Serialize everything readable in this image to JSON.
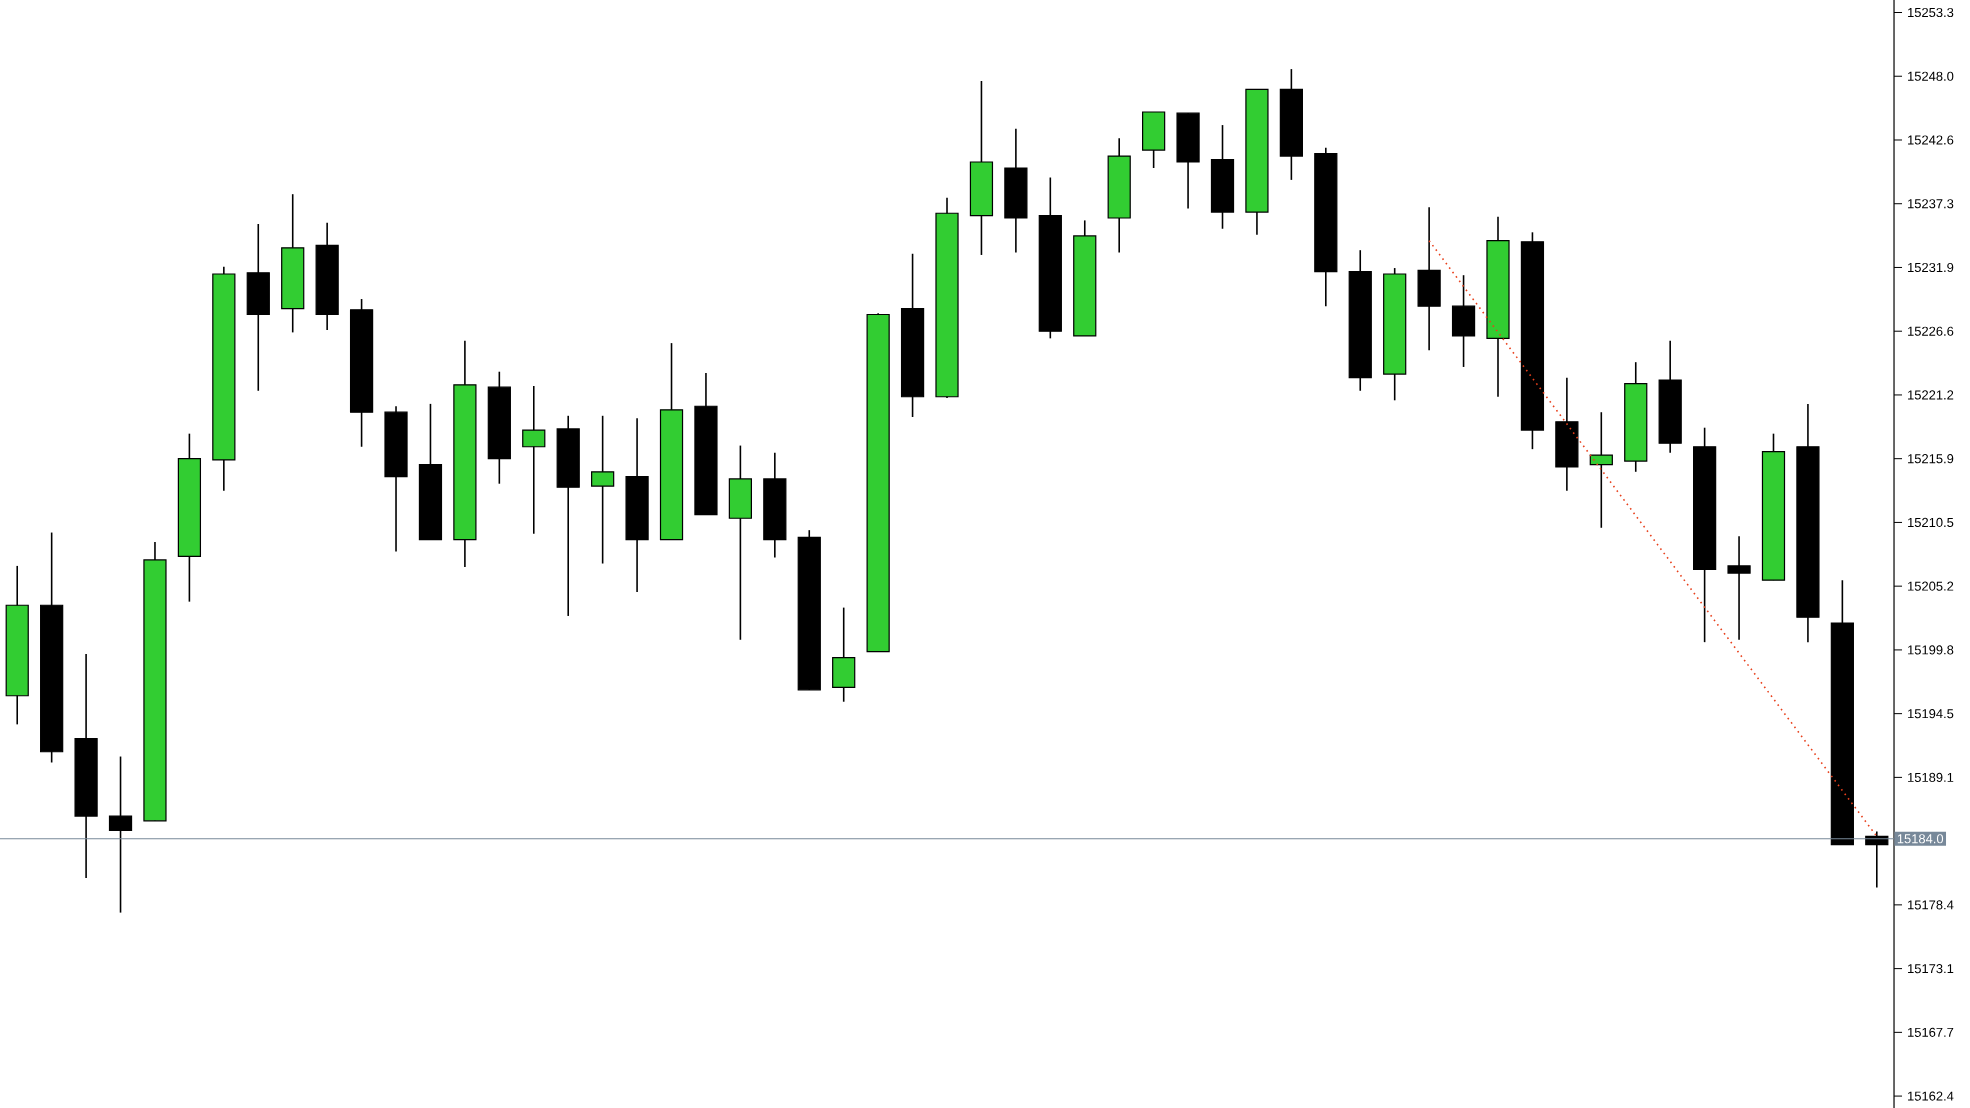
{
  "chart_data": {
    "type": "candlestick",
    "categories": [
      null,
      null,
      null,
      null,
      null,
      null,
      null,
      null,
      null,
      null,
      null,
      null,
      null,
      null,
      null,
      null,
      null,
      null,
      null,
      null,
      null,
      null,
      null,
      null,
      null,
      null,
      null,
      null,
      null,
      null,
      null,
      null,
      null,
      null,
      null,
      null,
      null,
      null,
      null,
      null,
      null,
      null,
      null,
      null,
      null,
      null,
      null,
      null,
      null,
      null,
      null,
      null,
      null,
      null,
      null
    ],
    "ylim": [
      15161.4,
      15254.4
    ],
    "yticks": [
      {
        "value": 15162.4,
        "label": "15162.4"
      },
      {
        "value": 15167.75,
        "label": "15167.7"
      },
      {
        "value": 15173.1,
        "label": "15173.1"
      },
      {
        "value": 15178.45,
        "label": "15178.4"
      },
      {
        "value": 15189.15,
        "label": "15189.1"
      },
      {
        "value": 15194.5,
        "label": "15194.5"
      },
      {
        "value": 15199.85,
        "label": "15199.8"
      },
      {
        "value": 15205.2,
        "label": "15205.2"
      },
      {
        "value": 15210.55,
        "label": "15210.5"
      },
      {
        "value": 15215.9,
        "label": "15215.9"
      },
      {
        "value": 15221.25,
        "label": "15221.2"
      },
      {
        "value": 15226.6,
        "label": "15226.6"
      },
      {
        "value": 15231.95,
        "label": "15231.9"
      },
      {
        "value": 15237.3,
        "label": "15237.3"
      },
      {
        "value": 15242.65,
        "label": "15242.6"
      },
      {
        "value": 15248.0,
        "label": "15248.0"
      },
      {
        "value": 15253.35,
        "label": "15253.3"
      }
    ],
    "tick_labels": "y",
    "ref_lines": [
      {
        "axis": "y",
        "value": 15184.0,
        "label": "15184.0",
        "color": "#778899"
      }
    ],
    "ohlc": [
      [
        15196.0,
        15206.9,
        15193.6,
        15203.6
      ],
      [
        15203.6,
        15209.7,
        15190.4,
        15191.3
      ],
      [
        15192.4,
        15199.5,
        15180.7,
        15185.9
      ],
      [
        15185.9,
        15190.9,
        15177.8,
        15184.7
      ],
      [
        15185.5,
        15208.9,
        15185.5,
        15207.4
      ],
      [
        15207.7,
        15218.0,
        15203.9,
        15215.9
      ],
      [
        15215.8,
        15232.0,
        15213.2,
        15231.4
      ],
      [
        15231.5,
        15235.6,
        15221.6,
        15228.0
      ],
      [
        15228.5,
        15238.1,
        15226.5,
        15233.6
      ],
      [
        15233.8,
        15235.7,
        15226.7,
        15228.0
      ],
      [
        15228.4,
        15229.3,
        15216.9,
        15219.8
      ],
      [
        15219.8,
        15220.3,
        15208.1,
        15214.4
      ],
      [
        15215.4,
        15220.5,
        15209.1,
        15209.1
      ],
      [
        15209.1,
        15225.8,
        15206.8,
        15222.1
      ],
      [
        15221.9,
        15223.2,
        15213.8,
        15215.9
      ],
      [
        15216.9,
        15222.0,
        15209.6,
        15218.3
      ],
      [
        15218.4,
        15219.5,
        15202.7,
        15213.5
      ],
      [
        15213.6,
        15219.5,
        15207.1,
        15214.8
      ],
      [
        15214.4,
        15219.3,
        15204.7,
        15209.1
      ],
      [
        15209.1,
        15225.6,
        15209.1,
        15220.0
      ],
      [
        15220.3,
        15223.1,
        15211.2,
        15211.2
      ],
      [
        15210.9,
        15217.0,
        15200.7,
        15214.2
      ],
      [
        15214.2,
        15216.4,
        15207.6,
        15209.1
      ],
      [
        15209.3,
        15209.9,
        15196.5,
        15196.5
      ],
      [
        15196.7,
        15203.4,
        15195.5,
        15199.2
      ],
      [
        15199.7,
        15228.1,
        15199.7,
        15228.0
      ],
      [
        15228.5,
        15233.1,
        15219.4,
        15221.1
      ],
      [
        15221.1,
        15237.8,
        15221.0,
        15236.5
      ],
      [
        15236.3,
        15247.6,
        15233.0,
        15240.8
      ],
      [
        15240.3,
        15243.6,
        15233.2,
        15236.1
      ],
      [
        15236.3,
        15239.5,
        15226.0,
        15226.6
      ],
      [
        15226.2,
        15235.9,
        15226.2,
        15234.6
      ],
      [
        15236.1,
        15242.8,
        15233.2,
        15241.3
      ],
      [
        15241.8,
        15245.0,
        15240.3,
        15245.0
      ],
      [
        15244.9,
        15244.9,
        15236.9,
        15240.8
      ],
      [
        15241.0,
        15243.9,
        15235.2,
        15236.6
      ],
      [
        15236.6,
        15246.9,
        15234.7,
        15246.9
      ],
      [
        15246.9,
        15248.6,
        15239.3,
        15241.3
      ],
      [
        15241.5,
        15242.0,
        15228.7,
        15231.6
      ],
      [
        15231.6,
        15233.4,
        15221.6,
        15222.7
      ],
      [
        15223.0,
        15231.9,
        15220.8,
        15231.4
      ],
      [
        15231.7,
        15237.0,
        15225.0,
        15228.7
      ],
      [
        15228.7,
        15231.3,
        15223.6,
        15226.2
      ],
      [
        15226.0,
        15236.2,
        15221.1,
        15234.2
      ],
      [
        15234.1,
        15234.9,
        15216.7,
        15218.3
      ],
      [
        15219.0,
        15222.7,
        15213.2,
        15215.2
      ],
      [
        15215.4,
        15219.8,
        15210.1,
        15216.2
      ],
      [
        15215.7,
        15224.0,
        15214.8,
        15222.2
      ],
      [
        15222.5,
        15225.8,
        15216.4,
        15217.2
      ],
      [
        15216.9,
        15218.5,
        15200.5,
        15206.6
      ],
      [
        15206.9,
        15209.4,
        15200.7,
        15206.3
      ],
      [
        15205.7,
        15218.0,
        15205.7,
        15216.5
      ],
      [
        15216.9,
        15220.5,
        15200.5,
        15202.6
      ],
      [
        15202.1,
        15205.7,
        15183.5,
        15183.5
      ],
      [
        15184.2,
        15184.6,
        15179.9,
        15183.5
      ]
    ],
    "colors": [
      "#32cd32",
      "#000000",
      "#000000",
      "#000000",
      "#32cd32",
      "#32cd32",
      "#32cd32",
      "#000000",
      "#32cd32",
      "#000000",
      "#000000",
      "#000000",
      "#000000",
      "#32cd32",
      "#000000",
      "#32cd32",
      "#000000",
      "#32cd32",
      "#000000",
      "#32cd32",
      "#000000",
      "#32cd32",
      "#000000",
      "#000000",
      "#32cd32",
      "#32cd32",
      "#000000",
      "#32cd32",
      "#32cd32",
      "#000000",
      "#000000",
      "#32cd32",
      "#32cd32",
      "#32cd32",
      "#000000",
      "#000000",
      "#32cd32",
      "#000000",
      "#000000",
      "#000000",
      "#32cd32",
      "#000000",
      "#000000",
      "#32cd32",
      "#000000",
      "#000000",
      "#32cd32",
      "#32cd32",
      "#000000",
      "#000000",
      "#000000",
      "#32cd32",
      "#000000",
      "#000000",
      "#000000"
    ],
    "series": [
      {
        "type": "line",
        "values": [
          null,
          null,
          null,
          null,
          null,
          null,
          null,
          null,
          null,
          null,
          null,
          null,
          null,
          null,
          null,
          null,
          null,
          null,
          null,
          null,
          null,
          null,
          null,
          null,
          null,
          null,
          null,
          null,
          null,
          null,
          null,
          null,
          null,
          null,
          null,
          null,
          null,
          null,
          null,
          null,
          null,
          15234.2,
          null,
          null,
          null,
          null,
          null,
          null,
          null,
          null,
          null,
          null,
          null,
          null,
          15184.2
        ],
        "color": "#e8401c",
        "line_style": "dotted",
        "marker": "none"
      }
    ]
  }
}
